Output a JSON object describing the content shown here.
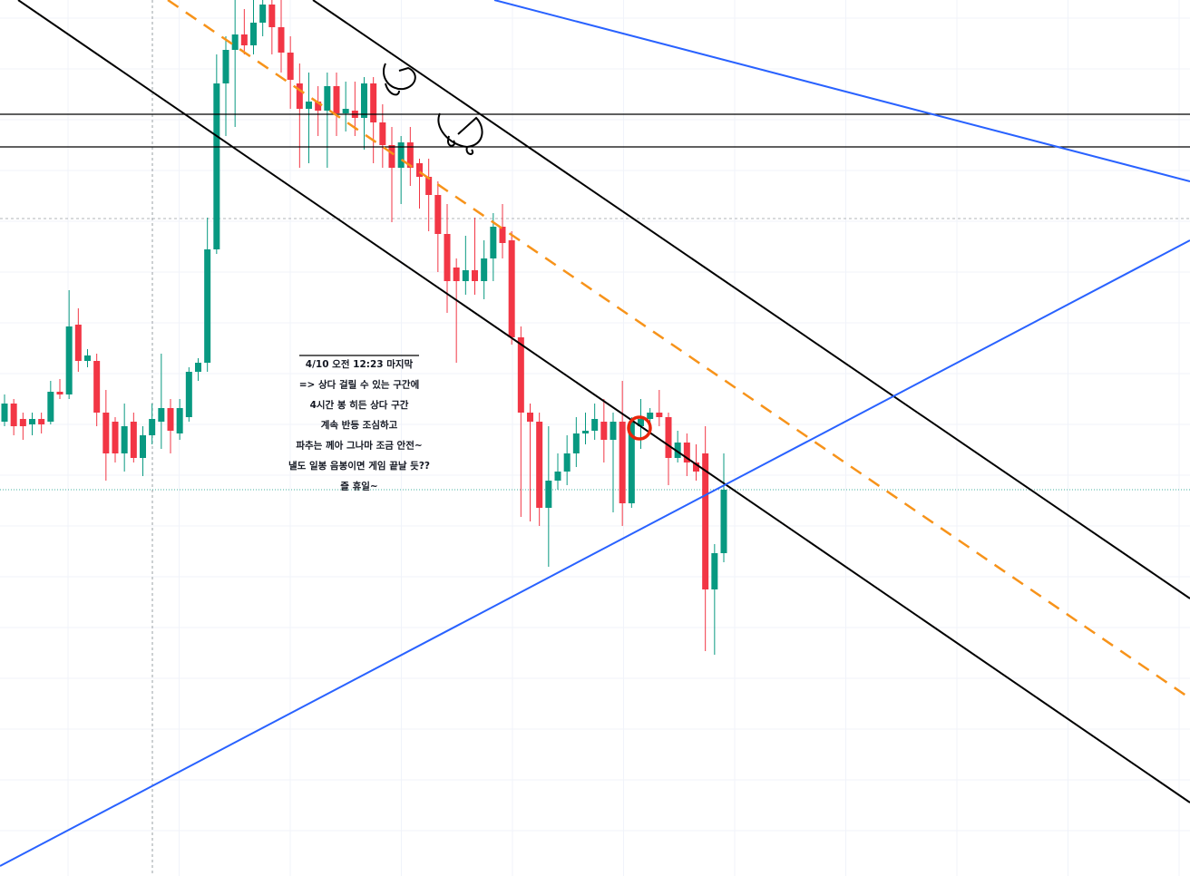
{
  "chart_data": {
    "type": "candlestick",
    "open": [
      535,
      555,
      538,
      532,
      538,
      535,
      568,
      565,
      642,
      602,
      602,
      545,
      535,
      500,
      535,
      495,
      520,
      535,
      550,
      522,
      540,
      590,
      600,
      725,
      908,
      945,
      962,
      950,
      975,
      995,
      970,
      942,
      908,
      880,
      888,
      878,
      905,
      875,
      878,
      870,
      908,
      865,
      840,
      815,
      843,
      820,
      805,
      785,
      742,
      705,
      690,
      702,
      690,
      715,
      750,
      735,
      628,
      545,
      535,
      440,
      470,
      480,
      500,
      522,
      525,
      535,
      515,
      535,
      445,
      530,
      538,
      545,
      540,
      495,
      512,
      490,
      500,
      350,
      390
    ],
    "close": [
      555,
      530,
      530,
      538,
      532,
      568,
      565,
      640,
      602,
      608,
      545,
      500,
      500,
      530,
      495,
      520,
      538,
      550,
      525,
      550,
      590,
      600,
      725,
      908,
      945,
      962,
      950,
      975,
      995,
      970,
      942,
      912,
      880,
      888,
      878,
      905,
      875,
      880,
      870,
      908,
      865,
      840,
      815,
      843,
      815,
      805,
      785,
      742,
      690,
      690,
      702,
      690,
      715,
      750,
      732,
      628,
      545,
      535,
      440,
      470,
      480,
      500,
      522,
      525,
      538,
      515,
      535,
      445,
      535,
      538,
      545,
      540,
      495,
      512,
      490,
      480,
      350,
      390,
      460
    ],
    "high": [
      565,
      560,
      545,
      545,
      545,
      580,
      582,
      680,
      660,
      615,
      610,
      570,
      540,
      555,
      545,
      530,
      555,
      610,
      560,
      560,
      595,
      605,
      760,
      940,
      960,
      1000,
      990,
      1000,
      1000,
      1000,
      1000,
      960,
      930,
      920,
      905,
      920,
      920,
      910,
      910,
      915,
      915,
      885,
      860,
      850,
      860,
      825,
      825,
      800,
      775,
      715,
      740,
      760,
      735,
      765,
      775,
      745,
      640,
      555,
      545,
      530,
      500,
      520,
      540,
      545,
      555,
      560,
      545,
      580,
      540,
      560,
      550,
      570,
      545,
      525,
      522,
      510,
      530,
      400,
      500
    ],
    "low": [
      530,
      520,
      515,
      520,
      522,
      532,
      560,
      560,
      590,
      595,
      530,
      470,
      490,
      480,
      490,
      475,
      510,
      505,
      500,
      515,
      535,
      580,
      590,
      720,
      850,
      860,
      940,
      940,
      960,
      940,
      920,
      880,
      815,
      820,
      850,
      815,
      850,
      855,
      850,
      835,
      820,
      815,
      755,
      775,
      795,
      770,
      745,
      700,
      655,
      600,
      675,
      675,
      670,
      690,
      715,
      620,
      430,
      425,
      420,
      375,
      460,
      465,
      485,
      510,
      515,
      490,
      435,
      420,
      440,
      505,
      530,
      530,
      465,
      490,
      475,
      470,
      282,
      278,
      380
    ],
    "ylim": [
      34,
      1000
    ],
    "up_color": "#089981",
    "down_color": "#f23645",
    "annotation": [
      "4/10 오전 12:23 마지막",
      "=> 상다 걸릴 수 있는 구간에",
      "4시간 봉 히든 상다 구간",
      "계속 반등 조심하고",
      "파추는 께아 그나마 조금 안전~",
      "낼도 일봉 음봉이면 게임 끝날 듯??",
      "즐 휴일~"
    ]
  }
}
